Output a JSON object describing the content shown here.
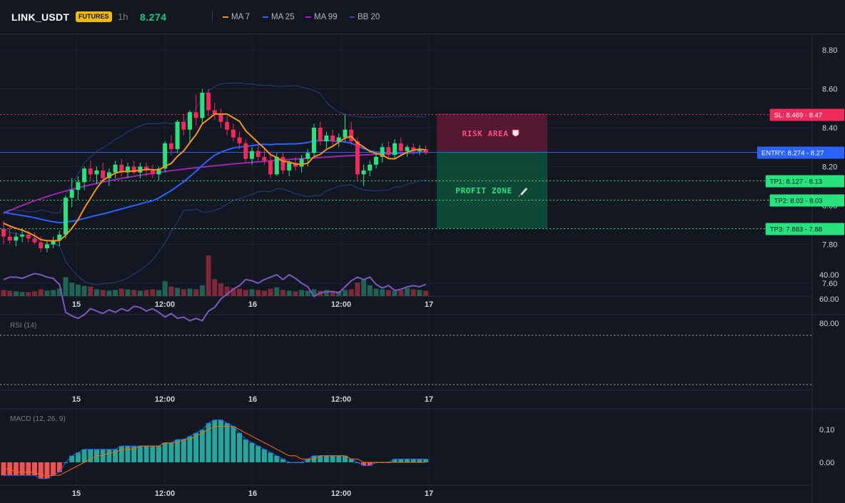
{
  "header": {
    "symbol": "LINK_USDT",
    "badge": "FUTURES",
    "interval": "1h",
    "price": "8.274",
    "legend": [
      {
        "label": "MA 7",
        "color": "#f7931a"
      },
      {
        "label": "MA 25",
        "color": "#2962ff"
      },
      {
        "label": "MA 99",
        "color": "#9c27b0"
      },
      {
        "label": "BB 20",
        "color": "#1e3a8a"
      }
    ]
  },
  "colors": {
    "background": "#131722",
    "up": "#26e37d",
    "down": "#f2295b",
    "ma7": "#f7931a",
    "ma25": "#2962ff",
    "ma99": "#9c27b0",
    "bb": "#283e7a",
    "rsi": "#7e57c2",
    "macd": "#2962ff",
    "signal": "#ff6d00",
    "hist_up": "#26a69a",
    "hist_down": "#ef5350",
    "risk_zone": "#6b1a37",
    "profit_zone": "#0e5a3d"
  },
  "time_axis": [
    "15",
    "12:00",
    "16",
    "12:00",
    "17"
  ],
  "price_axis": [
    "8.80",
    "8.60",
    "8.40",
    "8.20",
    "8.00",
    "7.80",
    "7.60"
  ],
  "rsi_axis": [
    "80.00",
    "60.00",
    "40.00"
  ],
  "macd_axis": [
    "0.10",
    "0.00"
  ],
  "panes": {
    "rsi_title": "RSI (14)",
    "macd_title": "MACD (12, 26, 9)"
  },
  "trade": {
    "sl": {
      "label": "SL: 8.469",
      "axis": "8.47",
      "value": 8.469
    },
    "entry": {
      "label": "ENTRY: 8.274",
      "axis": "8.27",
      "value": 8.274
    },
    "tp1": {
      "label": "TP1: 8.127",
      "axis": "8.13",
      "value": 8.127
    },
    "tp2": {
      "label": "TP2: 8.03",
      "axis": "8.03",
      "value": 8.03
    },
    "tp3": {
      "label": "TP3: 7.883",
      "axis": "7.88",
      "value": 7.883
    },
    "risk_label": "RISK AREA",
    "profit_label": "PROFIT ZONE"
  },
  "chart_data": {
    "type": "candlestick",
    "ylim": [
      7.55,
      8.85
    ],
    "candles": [
      [
        7.88,
        7.92,
        7.8,
        7.84
      ],
      [
        7.84,
        7.89,
        7.8,
        7.82
      ],
      [
        7.82,
        7.86,
        7.79,
        7.84
      ],
      [
        7.84,
        7.88,
        7.81,
        7.85
      ],
      [
        7.85,
        7.87,
        7.81,
        7.83
      ],
      [
        7.83,
        7.86,
        7.8,
        7.81
      ],
      [
        7.81,
        7.84,
        7.76,
        7.78
      ],
      [
        7.78,
        7.82,
        7.76,
        7.8
      ],
      [
        7.8,
        7.84,
        7.78,
        7.82
      ],
      [
        7.82,
        7.87,
        7.79,
        7.85
      ],
      [
        7.85,
        8.05,
        7.83,
        8.04
      ],
      [
        8.04,
        8.14,
        7.99,
        8.08
      ],
      [
        8.08,
        8.15,
        8.03,
        8.12
      ],
      [
        8.12,
        8.2,
        8.08,
        8.19
      ],
      [
        8.19,
        8.23,
        8.13,
        8.16
      ],
      [
        8.16,
        8.2,
        8.11,
        8.18
      ],
      [
        8.18,
        8.22,
        8.12,
        8.14
      ],
      [
        8.14,
        8.19,
        8.1,
        8.17
      ],
      [
        8.17,
        8.23,
        8.14,
        8.21
      ],
      [
        8.21,
        8.24,
        8.15,
        8.17
      ],
      [
        8.17,
        8.22,
        8.14,
        8.2
      ],
      [
        8.2,
        8.23,
        8.16,
        8.17
      ],
      [
        8.17,
        8.22,
        8.14,
        8.2
      ],
      [
        8.2,
        8.22,
        8.15,
        8.18
      ],
      [
        8.18,
        8.21,
        8.14,
        8.16
      ],
      [
        8.16,
        8.2,
        8.13,
        8.19
      ],
      [
        8.19,
        8.33,
        8.17,
        8.32
      ],
      [
        8.32,
        8.36,
        8.26,
        8.29
      ],
      [
        8.29,
        8.44,
        8.27,
        8.43
      ],
      [
        8.43,
        8.47,
        8.36,
        8.39
      ],
      [
        8.39,
        8.49,
        8.33,
        8.48
      ],
      [
        8.48,
        8.57,
        8.41,
        8.45
      ],
      [
        8.45,
        8.6,
        8.42,
        8.58
      ],
      [
        8.58,
        8.6,
        8.46,
        8.49
      ],
      [
        8.49,
        8.53,
        8.44,
        8.47
      ],
      [
        8.47,
        8.5,
        8.4,
        8.43
      ],
      [
        8.43,
        8.46,
        8.36,
        8.39
      ],
      [
        8.39,
        8.42,
        8.33,
        8.35
      ],
      [
        8.35,
        8.38,
        8.29,
        8.32
      ],
      [
        8.32,
        8.34,
        8.22,
        8.24
      ],
      [
        8.24,
        8.3,
        8.21,
        8.28
      ],
      [
        8.28,
        8.31,
        8.23,
        8.25
      ],
      [
        8.25,
        8.29,
        8.21,
        8.23
      ],
      [
        8.23,
        8.27,
        8.14,
        8.16
      ],
      [
        8.16,
        8.27,
        8.15,
        8.25
      ],
      [
        8.25,
        8.27,
        8.16,
        8.18
      ],
      [
        8.18,
        8.23,
        8.15,
        8.22
      ],
      [
        8.22,
        8.25,
        8.18,
        8.2
      ],
      [
        8.2,
        8.26,
        8.17,
        8.24
      ],
      [
        8.24,
        8.29,
        8.2,
        8.27
      ],
      [
        8.27,
        8.42,
        8.25,
        8.4
      ],
      [
        8.4,
        8.43,
        8.31,
        8.33
      ],
      [
        8.33,
        8.38,
        8.29,
        8.36
      ],
      [
        8.36,
        8.39,
        8.31,
        8.33
      ],
      [
        8.33,
        8.37,
        8.3,
        8.35
      ],
      [
        8.35,
        8.47,
        8.33,
        8.39
      ],
      [
        8.39,
        8.43,
        8.31,
        8.33
      ],
      [
        8.33,
        8.35,
        8.13,
        8.16
      ],
      [
        8.16,
        8.21,
        8.1,
        8.18
      ],
      [
        8.18,
        8.23,
        8.15,
        8.21
      ],
      [
        8.21,
        8.27,
        8.19,
        8.25
      ],
      [
        8.25,
        8.32,
        8.22,
        8.3
      ],
      [
        8.3,
        8.33,
        8.24,
        8.26
      ],
      [
        8.26,
        8.34,
        8.24,
        8.32
      ],
      [
        8.32,
        8.35,
        8.26,
        8.28
      ],
      [
        8.28,
        8.31,
        8.25,
        8.3
      ],
      [
        8.3,
        8.32,
        8.26,
        8.28
      ],
      [
        8.28,
        8.31,
        8.26,
        8.29
      ],
      [
        8.29,
        8.31,
        8.26,
        8.27
      ]
    ],
    "volume": [
      9,
      8,
      7,
      6,
      6,
      7,
      10,
      8,
      9,
      11,
      28,
      20,
      17,
      15,
      14,
      10,
      9,
      8,
      9,
      11,
      10,
      9,
      8,
      9,
      10,
      9,
      22,
      14,
      12,
      10,
      11,
      10,
      16,
      60,
      25,
      19,
      14,
      12,
      11,
      9,
      10,
      9,
      8,
      11,
      13,
      9,
      8,
      7,
      9,
      8,
      10,
      8,
      9,
      8,
      7,
      9,
      10,
      20,
      24,
      16,
      11,
      10,
      9,
      8,
      9,
      12,
      10,
      9,
      8
    ],
    "rsi": [
      44,
      42,
      42,
      43,
      41,
      39,
      40,
      42,
      43,
      48,
      71,
      74,
      76,
      73,
      68,
      70,
      72,
      69,
      71,
      68,
      70,
      66,
      67,
      70,
      68,
      71,
      75,
      72,
      76,
      75,
      78,
      76,
      78,
      70,
      67,
      60,
      56,
      52,
      49,
      44,
      45,
      47,
      44,
      42,
      40,
      44,
      40,
      43,
      47,
      50,
      58,
      55,
      54,
      54,
      55,
      50,
      45,
      42,
      44,
      42,
      48,
      51,
      49,
      53,
      52,
      50,
      49,
      50,
      48
    ],
    "macd": [
      -0.04,
      -0.04,
      -0.04,
      -0.04,
      -0.04,
      -0.04,
      -0.05,
      -0.05,
      -0.04,
      -0.03,
      0.0,
      0.02,
      0.03,
      0.04,
      0.04,
      0.04,
      0.04,
      0.04,
      0.04,
      0.05,
      0.05,
      0.05,
      0.05,
      0.05,
      0.05,
      0.05,
      0.06,
      0.06,
      0.07,
      0.07,
      0.08,
      0.09,
      0.1,
      0.12,
      0.13,
      0.13,
      0.12,
      0.11,
      0.09,
      0.07,
      0.06,
      0.05,
      0.04,
      0.03,
      0.02,
      0.01,
      0.0,
      0.0,
      0.0,
      0.01,
      0.02,
      0.02,
      0.02,
      0.02,
      0.02,
      0.02,
      0.01,
      0.0,
      -0.01,
      -0.01,
      0.0,
      0.0,
      0.0,
      0.01,
      0.01,
      0.01,
      0.01,
      0.01,
      0.01
    ],
    "signal": [
      -0.02,
      -0.02,
      -0.03,
      -0.03,
      -0.03,
      -0.03,
      -0.04,
      -0.04,
      -0.04,
      -0.04,
      -0.03,
      -0.02,
      -0.01,
      0.0,
      0.01,
      0.02,
      0.02,
      0.03,
      0.03,
      0.04,
      0.04,
      0.04,
      0.05,
      0.05,
      0.05,
      0.05,
      0.06,
      0.06,
      0.06,
      0.07,
      0.07,
      0.08,
      0.09,
      0.1,
      0.11,
      0.11,
      0.11,
      0.11,
      0.1,
      0.09,
      0.08,
      0.07,
      0.06,
      0.05,
      0.04,
      0.03,
      0.02,
      0.02,
      0.01,
      0.01,
      0.01,
      0.02,
      0.02,
      0.02,
      0.02,
      0.02,
      0.01,
      0.01,
      0.0,
      0.0,
      0.0,
      0.0,
      0.0,
      0.0,
      0.0,
      0.0,
      0.0,
      0.0,
      0.0
    ]
  }
}
